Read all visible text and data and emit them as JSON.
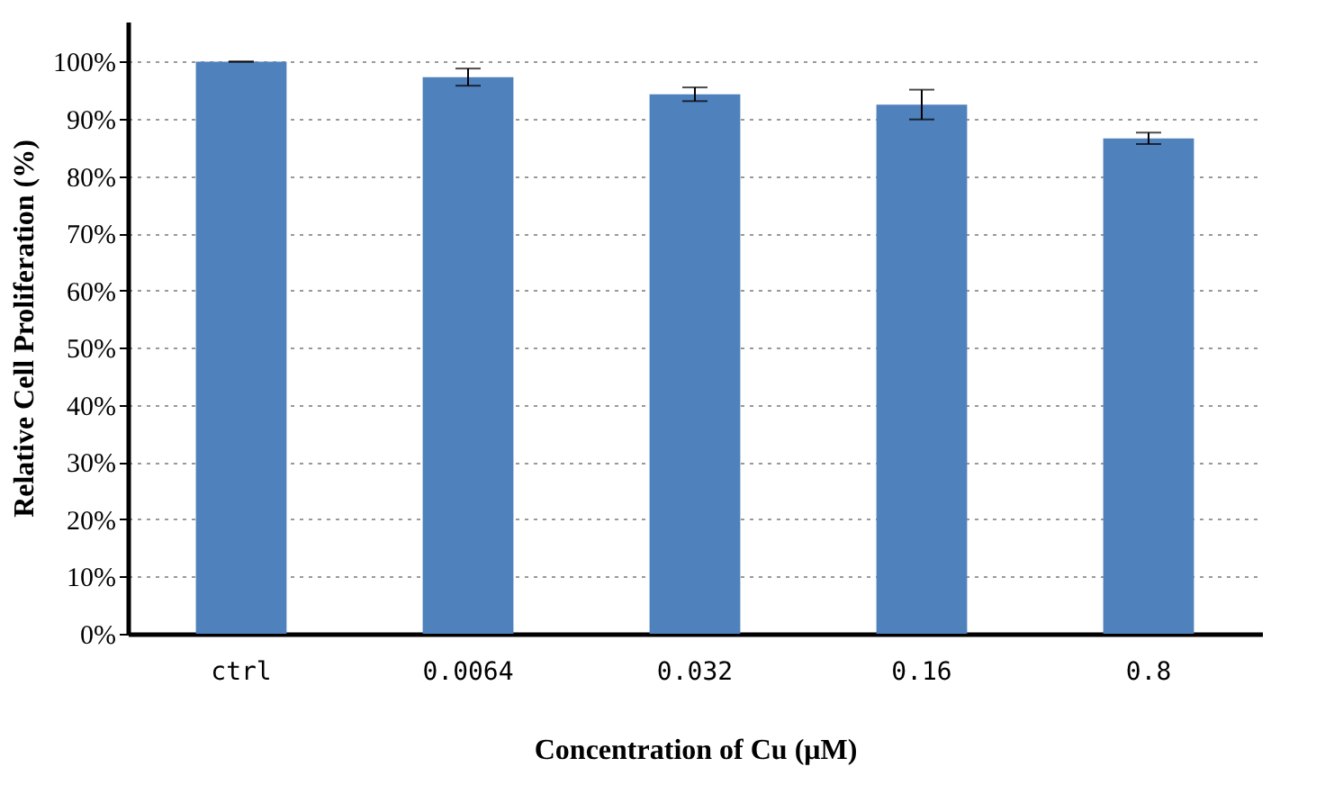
{
  "chart_data": {
    "type": "bar",
    "xlabel": "Concentration of Cu (μM)",
    "ylabel": "Relative Cell Proliferation (%)",
    "categories": [
      "ctrl",
      "0.0064",
      "0.032",
      "0.16",
      "0.8"
    ],
    "values": [
      100,
      97.3,
      94.3,
      92.5,
      86.6
    ],
    "errors": [
      0,
      1.5,
      1.2,
      2.6,
      1.0
    ],
    "color": "#4f81bd",
    "ylim": [
      0,
      107
    ],
    "yticks": [
      {
        "value": 0,
        "label": "0%"
      },
      {
        "value": 10,
        "label": "10%"
      },
      {
        "value": 20,
        "label": "20%"
      },
      {
        "value": 30,
        "label": "30%"
      },
      {
        "value": 40,
        "label": "40%"
      },
      {
        "value": 50,
        "label": "50%"
      },
      {
        "value": 60,
        "label": "60%"
      },
      {
        "value": 70,
        "label": "70%"
      },
      {
        "value": 80,
        "label": "80%"
      },
      {
        "value": 90,
        "label": "90%"
      },
      {
        "value": 100,
        "label": "100%"
      }
    ],
    "grid": "y"
  }
}
